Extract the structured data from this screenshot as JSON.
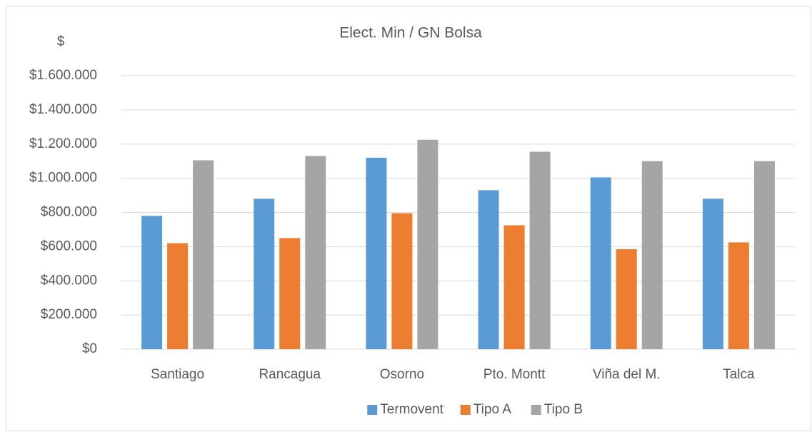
{
  "chart_data": {
    "type": "bar",
    "title": "Elect. Min / GN Bolsa",
    "y_label": "$",
    "categories": [
      "Santiago",
      "Rancagua",
      "Osorno",
      "Pto. Montt",
      "Viña del M.",
      "Talca"
    ],
    "series": [
      {
        "name": "Termovent",
        "color": "#5b9bd5",
        "values": [
          780000,
          880000,
          1120000,
          930000,
          1005000,
          880000
        ]
      },
      {
        "name": "Tipo A",
        "color": "#ed7d31",
        "values": [
          620000,
          650000,
          795000,
          725000,
          585000,
          625000
        ]
      },
      {
        "name": "Tipo B",
        "color": "#a5a5a5",
        "values": [
          1105000,
          1130000,
          1225000,
          1155000,
          1100000,
          1100000
        ]
      }
    ],
    "ylim": [
      0,
      1600000
    ],
    "yticks": [
      {
        "value": 0,
        "label": "$0"
      },
      {
        "value": 200000,
        "label": "$200.000"
      },
      {
        "value": 400000,
        "label": "$400.000"
      },
      {
        "value": 600000,
        "label": "$600.000"
      },
      {
        "value": 800000,
        "label": "$800.000"
      },
      {
        "value": 1000000,
        "label": "$1.000.000"
      },
      {
        "value": 1200000,
        "label": "$1.200.000"
      },
      {
        "value": 1400000,
        "label": "$1.400.000"
      },
      {
        "value": 1600000,
        "label": "$1.600.000"
      }
    ],
    "grid": true,
    "legend": "bottom"
  }
}
